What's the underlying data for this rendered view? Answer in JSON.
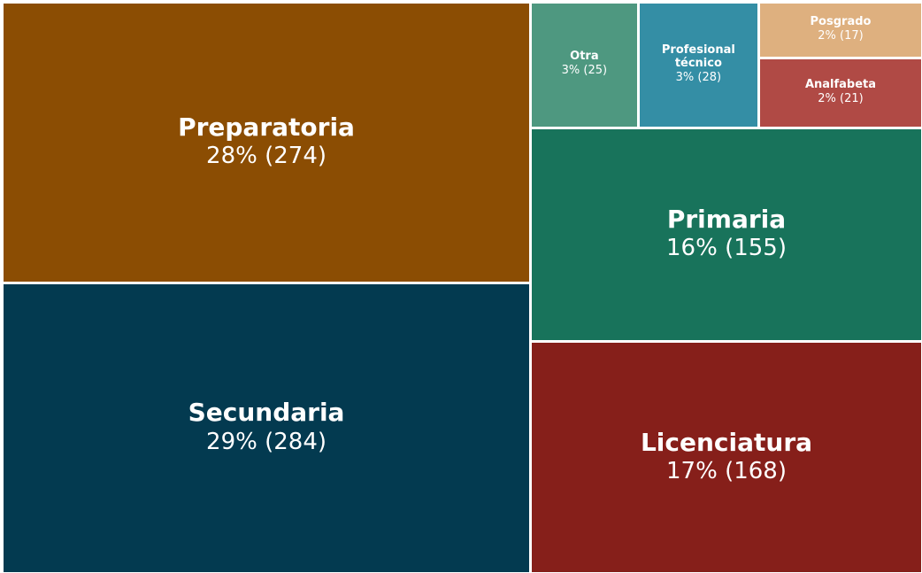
{
  "chart_data": {
    "type": "treemap",
    "categories": [
      "Preparatoria",
      "Secundaria",
      "Otra",
      "Profesional técnico",
      "Posgrado",
      "Analfabeta",
      "Primaria",
      "Licenciatura"
    ],
    "values": [
      274,
      284,
      25,
      28,
      17,
      21,
      155,
      168
    ],
    "value_labels": [
      "28% (274)",
      "29% (284)",
      "3% (25)",
      "3% (28)",
      "2% (17)",
      "2% (21)",
      "16% (155)",
      "17% (168)"
    ],
    "colors": [
      "#8b4d03",
      "#033a50",
      "#4e9880",
      "#348ea5",
      "#deb07f",
      "#b04a45",
      "#18735b",
      "#861f1a"
    ]
  }
}
